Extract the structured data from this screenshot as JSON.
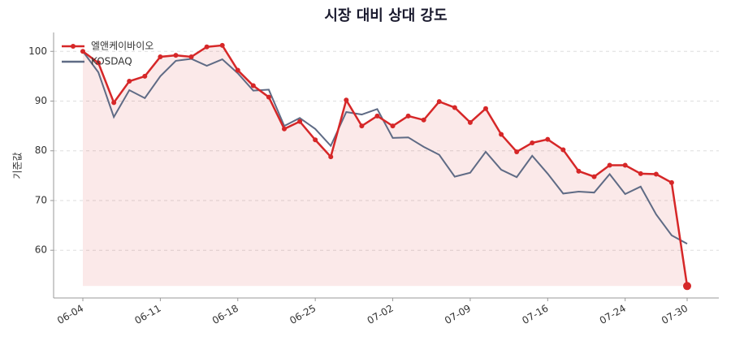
{
  "chart_data": {
    "type": "line",
    "title": "시장 대비 상대 강도",
    "y_label": "기준값",
    "categories": [
      "06-04",
      null,
      null,
      null,
      null,
      "06-11",
      null,
      null,
      null,
      null,
      "06-18",
      null,
      null,
      null,
      null,
      "06-25",
      null,
      null,
      null,
      null,
      "07-02",
      null,
      null,
      null,
      null,
      "07-09",
      null,
      null,
      null,
      null,
      "07-16",
      null,
      null,
      null,
      null,
      "07-24",
      null,
      null,
      null,
      "07-30"
    ],
    "series": [
      {
        "name": "엘앤케이바이오",
        "color": "#d62728",
        "values": [
          100,
          97.7,
          89.7,
          94.0,
          95.0,
          98.9,
          99.2,
          98.9,
          100.9,
          101.2,
          96.2,
          93.1,
          90.8,
          84.4,
          85.9,
          82.2,
          78.8,
          90.2,
          85.0,
          87.0,
          85.0,
          87.0,
          86.2,
          89.9,
          88.7,
          85.7,
          88.5,
          83.3,
          79.8,
          81.6,
          82.3,
          80.2,
          75.9,
          74.8,
          77.1,
          77.1,
          75.4,
          75.3,
          73.6,
          52.8
        ]
      },
      {
        "name": "KOSDAQ",
        "color": "#5f6b85",
        "values": [
          100,
          95.8,
          86.8,
          92.2,
          90.6,
          95.0,
          98.1,
          98.5,
          97.1,
          98.4,
          95.6,
          92.1,
          92.3,
          85.0,
          86.6,
          84.4,
          81.0,
          87.8,
          87.3,
          88.4,
          82.6,
          82.7,
          80.8,
          79.2,
          74.8,
          75.6,
          79.8,
          76.2,
          74.7,
          79.0,
          75.4,
          71.4,
          71.8,
          71.6,
          75.3,
          71.3,
          72.8,
          67.2,
          63.0,
          61.3
        ]
      }
    ],
    "ylim": [
      50.4,
      103.8
    ],
    "yticks": [
      60,
      70,
      80,
      90,
      100
    ],
    "grid": true,
    "legend": "upper left"
  }
}
